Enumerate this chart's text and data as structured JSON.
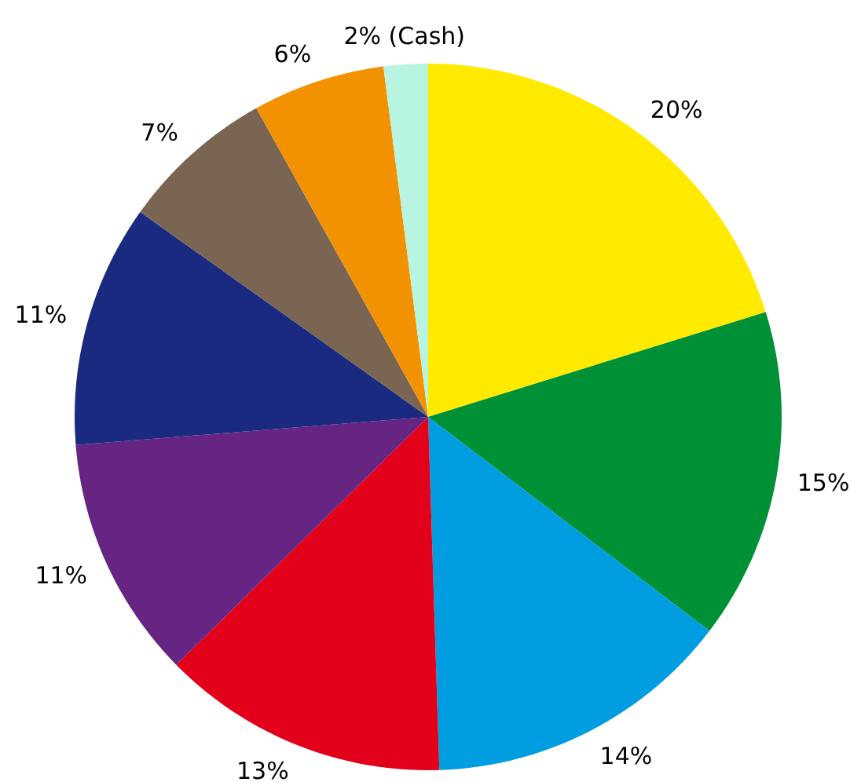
{
  "chart_data": {
    "type": "pie",
    "categories": [
      null,
      null,
      null,
      null,
      null,
      null,
      null,
      null,
      null
    ],
    "values": [
      20,
      15,
      14,
      13,
      11,
      11,
      7,
      6,
      2
    ],
    "colors": [
      "#ffea00",
      "#009036",
      "#009ee0",
      "#e2001a",
      "#662483",
      "#1a2a80",
      "#7a6552",
      "#f39200",
      "#b8f5e0"
    ],
    "value_labels": [
      "20%",
      "15%",
      "14%",
      "13%",
      "11%",
      "11%",
      "7%",
      "6%",
      "2% (Cash)"
    ]
  }
}
